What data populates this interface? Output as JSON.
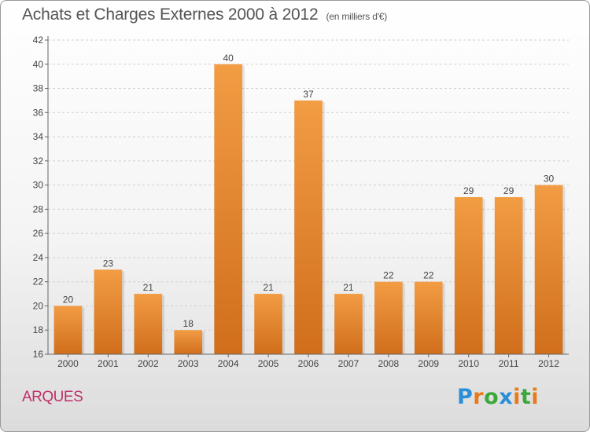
{
  "title": {
    "main": "Achats et Charges Externes 2000 à 2012",
    "unit": "(en milliers d'€)"
  },
  "place_name": "ARQUES",
  "logo": {
    "text": "Proxiti",
    "letters": [
      {
        "ch": "P",
        "color": "#2a8fd8"
      },
      {
        "ch": "r",
        "color": "#e77a1c"
      },
      {
        "ch": "o",
        "color": "#3aa83a"
      },
      {
        "ch": "x",
        "color": "#2a8fd8"
      },
      {
        "ch": "i",
        "color": "#e77a1c"
      },
      {
        "ch": "t",
        "color": "#3aa83a"
      },
      {
        "ch": "i",
        "color": "#e77a1c"
      }
    ]
  },
  "chart_data": {
    "type": "bar",
    "categories": [
      "2000",
      "2001",
      "2002",
      "2003",
      "2004",
      "2005",
      "2006",
      "2007",
      "2008",
      "2009",
      "2010",
      "2011",
      "2012"
    ],
    "values": [
      20,
      23,
      21,
      18,
      40,
      21,
      37,
      21,
      22,
      22,
      29,
      29,
      30
    ],
    "ylim": [
      16,
      42
    ],
    "ytick_step": 2,
    "grid": true,
    "bar_color": "#f29c44",
    "bar_color_dark": "#d06e1c"
  }
}
